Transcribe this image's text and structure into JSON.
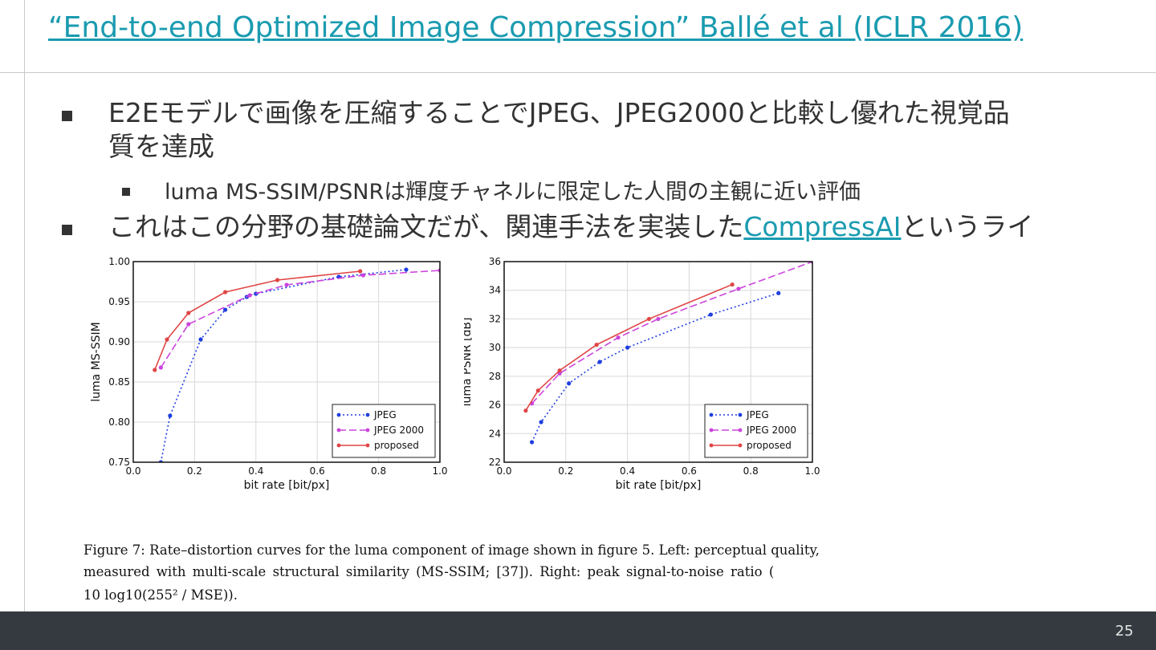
{
  "slide": {
    "title": "“End-to-end Optimized Image Compression” Ballé et al (ICLR 2016)",
    "bullet1": "E2Eモデルで画像を圧縮することでJPEG、JPEG2000と比較し優れた視覚品",
    "bullet1_cont": "質を達成",
    "sub_bullet": "luma MS-SSIM/PSNRは輝度チャネルに限定した人間の主観に近い評価",
    "bullet3_pre": "これはこの分野の基礎論文だが、関連手法を実装した",
    "bullet3_link": "CompressAI",
    "bullet3_post": "というライ",
    "page_number": "25"
  },
  "caption": {
    "line1": "Figure 7: Rate–distortion curves for the luma component of image shown in figure 5. Left: perceptual quality,",
    "line2": "measured with multi-scale structural similarity (MS-SSIM; [37]). Right: peak signal-to-noise ratio (",
    "line3": "10 log10(255² / MSE))."
  },
  "colors": {
    "title_link": "#1a9bb0",
    "text": "#333333",
    "footer": "#343a3f",
    "jpeg": "#1f3fe0",
    "jpeg2000": "#cc44dd",
    "proposed": "#e04545"
  },
  "chart_data": [
    {
      "type": "line",
      "xlabel": "bit rate [bit/px]",
      "ylabel": "luma MS-SSIM",
      "xlim": [
        0.0,
        1.0
      ],
      "ylim": [
        0.75,
        1.0
      ],
      "xticks": [
        "0.0",
        "0.2",
        "0.4",
        "0.6",
        "0.8",
        "1.0"
      ],
      "yticks": [
        "0.75",
        "0.80",
        "0.85",
        "0.90",
        "0.95",
        "1.00"
      ],
      "grid": true,
      "legend_position": "bottom-right",
      "series": [
        {
          "name": "JPEG",
          "style": "dotted",
          "color": "#1f3fe0",
          "points": [
            [
              0.09,
              0.75
            ],
            [
              0.12,
              0.808
            ],
            [
              0.22,
              0.903
            ],
            [
              0.3,
              0.94
            ],
            [
              0.37,
              0.956
            ],
            [
              0.4,
              0.96
            ],
            [
              0.67,
              0.981
            ],
            [
              0.89,
              0.99
            ]
          ]
        },
        {
          "name": "JPEG 2000",
          "style": "dashed",
          "color": "#cc44dd",
          "points": [
            [
              0.09,
              0.868
            ],
            [
              0.18,
              0.922
            ],
            [
              0.38,
              0.958
            ],
            [
              0.5,
              0.971
            ],
            [
              0.75,
              0.983
            ],
            [
              1.0,
              0.989
            ]
          ]
        },
        {
          "name": "proposed",
          "style": "solid",
          "color": "#e04545",
          "points": [
            [
              0.07,
              0.865
            ],
            [
              0.11,
              0.903
            ],
            [
              0.18,
              0.936
            ],
            [
              0.3,
              0.962
            ],
            [
              0.47,
              0.977
            ],
            [
              0.74,
              0.988
            ]
          ]
        }
      ]
    },
    {
      "type": "line",
      "xlabel": "bit rate [bit/px]",
      "ylabel": "luma PSNR [dB]",
      "xlim": [
        0.0,
        1.0
      ],
      "ylim": [
        22,
        36
      ],
      "xticks": [
        "0.0",
        "0.2",
        "0.4",
        "0.6",
        "0.8",
        "1.0"
      ],
      "yticks": [
        "22",
        "24",
        "26",
        "28",
        "30",
        "32",
        "34",
        "36"
      ],
      "grid": true,
      "legend_position": "bottom-right",
      "series": [
        {
          "name": "JPEG",
          "style": "dotted",
          "color": "#1f3fe0",
          "points": [
            [
              0.09,
              23.4
            ],
            [
              0.12,
              24.8
            ],
            [
              0.21,
              27.5
            ],
            [
              0.31,
              29.0
            ],
            [
              0.4,
              30.0
            ],
            [
              0.67,
              32.3
            ],
            [
              0.89,
              33.8
            ]
          ]
        },
        {
          "name": "JPEG 2000",
          "style": "dashed",
          "color": "#cc44dd",
          "points": [
            [
              0.09,
              26.1
            ],
            [
              0.18,
              28.2
            ],
            [
              0.37,
              30.7
            ],
            [
              0.5,
              32.0
            ],
            [
              0.76,
              34.1
            ],
            [
              1.0,
              36.0
            ]
          ]
        },
        {
          "name": "proposed",
          "style": "solid",
          "color": "#e04545",
          "points": [
            [
              0.07,
              25.6
            ],
            [
              0.11,
              27.0
            ],
            [
              0.18,
              28.4
            ],
            [
              0.3,
              30.2
            ],
            [
              0.47,
              32.0
            ],
            [
              0.74,
              34.4
            ]
          ]
        }
      ]
    }
  ]
}
